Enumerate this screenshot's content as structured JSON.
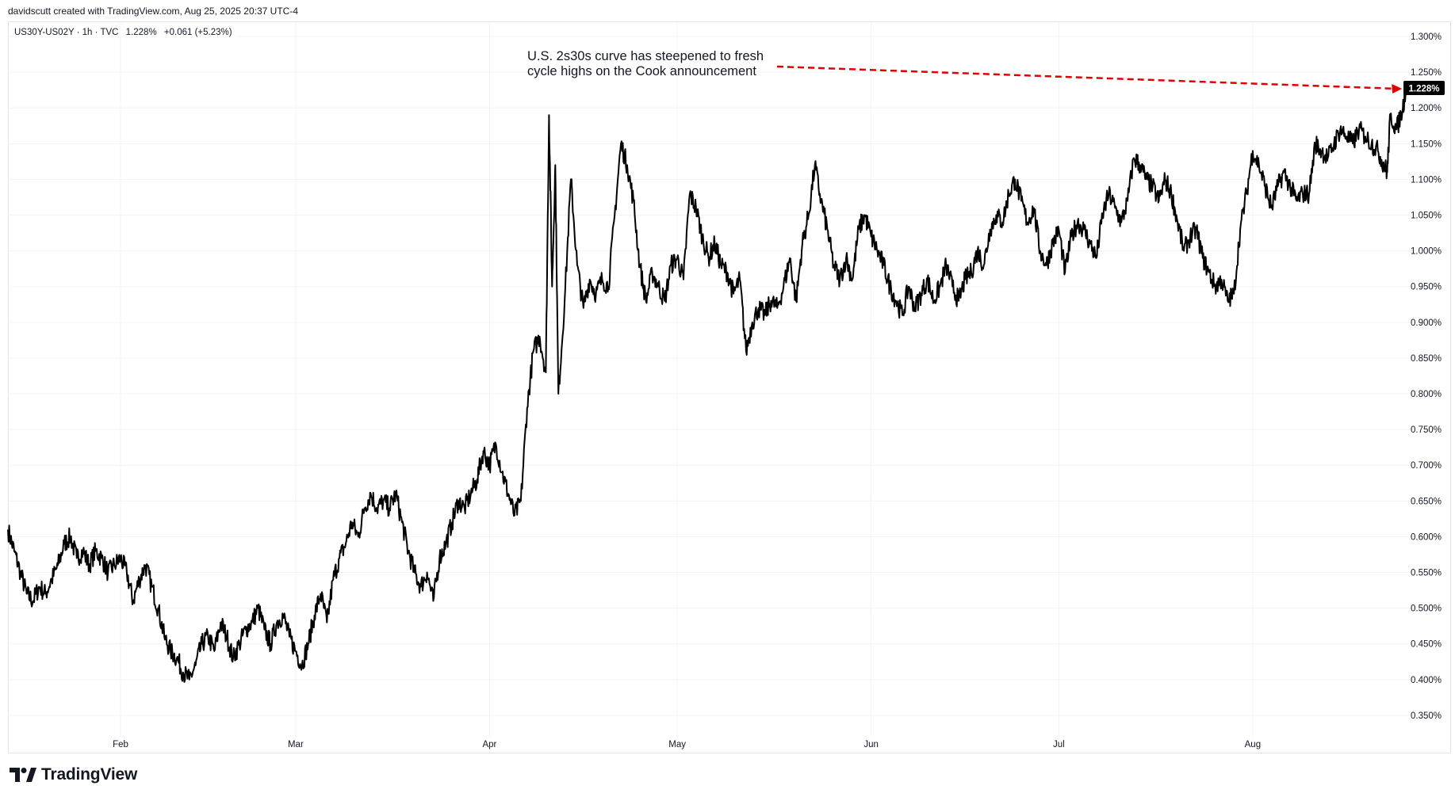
{
  "attribution": "davidscutt created with TradingView.com, Aug 25, 2025 20:37 UTC-4",
  "legend": {
    "symbol": "US30Y-US02Y · 1h · TVC",
    "last": "1.228%",
    "change": "+0.061 (+5.23%)"
  },
  "annotation": {
    "line1": "U.S. 2s30s curve has steepened to fresh",
    "line2": "cycle highs on the Cook announcement"
  },
  "brand": "TradingView",
  "colors": {
    "line": "#000000",
    "arrow": "#e00000",
    "grid": "#f0f3fa",
    "label_bg": "#000000",
    "label_text": "#ffffff"
  },
  "chart_data": {
    "type": "line",
    "title": "",
    "xlabel": "",
    "ylabel": "",
    "ylim": [
      0.32,
      1.32
    ],
    "y_ticks": [
      "1.300%",
      "1.250%",
      "1.200%",
      "1.150%",
      "1.100%",
      "1.050%",
      "1.000%",
      "0.950%",
      "0.900%",
      "0.850%",
      "0.800%",
      "0.750%",
      "0.700%",
      "0.650%",
      "0.600%",
      "0.550%",
      "0.500%",
      "0.450%",
      "0.400%",
      "0.350%"
    ],
    "x_ticks": [
      "Feb",
      "Mar",
      "Apr",
      "May",
      "Jun",
      "Jul",
      "Aug"
    ],
    "last_value_label": "1.228%",
    "series": [
      {
        "values": [
          [
            "2025-01-14",
            0.61
          ],
          [
            "2025-01-15",
            0.58
          ],
          [
            "2025-01-16",
            0.55
          ],
          [
            "2025-01-17",
            0.52
          ],
          [
            "2025-01-18",
            0.51
          ],
          [
            "2025-01-19",
            0.53
          ],
          [
            "2025-01-20",
            0.52
          ],
          [
            "2025-01-21",
            0.54
          ],
          [
            "2025-01-22",
            0.56
          ],
          [
            "2025-01-23",
            0.59
          ],
          [
            "2025-01-24",
            0.6
          ],
          [
            "2025-01-25",
            0.57
          ],
          [
            "2025-01-26",
            0.58
          ],
          [
            "2025-01-27",
            0.56
          ],
          [
            "2025-01-28",
            0.58
          ],
          [
            "2025-01-29",
            0.57
          ],
          [
            "2025-01-30",
            0.55
          ],
          [
            "2025-01-31",
            0.56
          ],
          [
            "2025-02-01",
            0.57
          ],
          [
            "2025-02-02",
            0.55
          ],
          [
            "2025-02-03",
            0.51
          ],
          [
            "2025-02-04",
            0.54
          ],
          [
            "2025-02-05",
            0.56
          ],
          [
            "2025-02-06",
            0.53
          ],
          [
            "2025-02-07",
            0.5
          ],
          [
            "2025-02-08",
            0.46
          ],
          [
            "2025-02-09",
            0.44
          ],
          [
            "2025-02-10",
            0.43
          ],
          [
            "2025-02-11",
            0.41
          ],
          [
            "2025-02-12",
            0.4
          ],
          [
            "2025-02-13",
            0.42
          ],
          [
            "2025-02-14",
            0.45
          ],
          [
            "2025-02-15",
            0.46
          ],
          [
            "2025-02-16",
            0.44
          ],
          [
            "2025-02-17",
            0.48
          ],
          [
            "2025-02-18",
            0.46
          ],
          [
            "2025-02-19",
            0.43
          ],
          [
            "2025-02-20",
            0.45
          ],
          [
            "2025-02-21",
            0.47
          ],
          [
            "2025-02-22",
            0.48
          ],
          [
            "2025-02-23",
            0.5
          ],
          [
            "2025-02-24",
            0.47
          ],
          [
            "2025-02-25",
            0.45
          ],
          [
            "2025-02-26",
            0.48
          ],
          [
            "2025-02-27",
            0.49
          ],
          [
            "2025-02-28",
            0.46
          ],
          [
            "2025-03-01",
            0.44
          ],
          [
            "2025-03-02",
            0.42
          ],
          [
            "2025-03-03",
            0.45
          ],
          [
            "2025-03-04",
            0.49
          ],
          [
            "2025-03-05",
            0.52
          ],
          [
            "2025-03-06",
            0.48
          ],
          [
            "2025-03-07",
            0.54
          ],
          [
            "2025-03-08",
            0.57
          ],
          [
            "2025-03-09",
            0.59
          ],
          [
            "2025-03-10",
            0.62
          ],
          [
            "2025-03-11",
            0.6
          ],
          [
            "2025-03-12",
            0.64
          ],
          [
            "2025-03-13",
            0.66
          ],
          [
            "2025-03-14",
            0.64
          ],
          [
            "2025-03-15",
            0.65
          ],
          [
            "2025-03-16",
            0.64
          ],
          [
            "2025-03-17",
            0.66
          ],
          [
            "2025-03-18",
            0.62
          ],
          [
            "2025-03-19",
            0.58
          ],
          [
            "2025-03-20",
            0.55
          ],
          [
            "2025-03-21",
            0.53
          ],
          [
            "2025-03-22",
            0.55
          ],
          [
            "2025-03-23",
            0.51
          ],
          [
            "2025-03-24",
            0.57
          ],
          [
            "2025-03-25",
            0.59
          ],
          [
            "2025-03-26",
            0.62
          ],
          [
            "2025-03-27",
            0.65
          ],
          [
            "2025-03-28",
            0.64
          ],
          [
            "2025-03-29",
            0.66
          ],
          [
            "2025-03-30",
            0.68
          ],
          [
            "2025-03-31",
            0.72
          ],
          [
            "2025-04-01",
            0.7
          ],
          [
            "2025-04-02",
            0.73
          ],
          [
            "2025-04-03",
            0.69
          ],
          [
            "2025-04-04",
            0.66
          ],
          [
            "2025-04-05",
            0.63
          ],
          [
            "2025-04-06",
            0.65
          ],
          [
            "2025-04-07",
            0.78
          ],
          [
            "2025-04-08",
            0.86
          ],
          [
            "2025-04-09",
            0.88
          ],
          [
            "2025-04-10",
            0.83
          ],
          [
            "2025-04-10T12",
            1.19
          ],
          [
            "2025-04-11",
            0.95
          ],
          [
            "2025-04-11T12",
            1.12
          ],
          [
            "2025-04-12",
            0.8
          ],
          [
            "2025-04-13",
            0.93
          ],
          [
            "2025-04-14",
            1.1
          ],
          [
            "2025-04-15",
            0.98
          ],
          [
            "2025-04-16",
            0.92
          ],
          [
            "2025-04-17",
            0.96
          ],
          [
            "2025-04-18",
            0.94
          ],
          [
            "2025-04-19",
            0.96
          ],
          [
            "2025-04-20",
            0.95
          ],
          [
            "2025-04-21",
            1.05
          ],
          [
            "2025-04-22",
            1.15
          ],
          [
            "2025-04-23",
            1.12
          ],
          [
            "2025-04-24",
            1.07
          ],
          [
            "2025-04-25",
            0.98
          ],
          [
            "2025-04-26",
            0.93
          ],
          [
            "2025-04-27",
            0.97
          ],
          [
            "2025-04-28",
            0.95
          ],
          [
            "2025-04-29",
            0.93
          ],
          [
            "2025-04-30",
            0.98
          ],
          [
            "2025-05-01",
            0.99
          ],
          [
            "2025-05-02",
            0.96
          ],
          [
            "2025-05-03",
            1.08
          ],
          [
            "2025-05-04",
            1.06
          ],
          [
            "2025-05-05",
            1.02
          ],
          [
            "2025-05-06",
            0.99
          ],
          [
            "2025-05-07",
            1.01
          ],
          [
            "2025-05-08",
            0.98
          ],
          [
            "2025-05-09",
            0.97
          ],
          [
            "2025-05-10",
            0.94
          ],
          [
            "2025-05-11",
            0.96
          ],
          [
            "2025-05-12",
            0.86
          ],
          [
            "2025-05-13",
            0.9
          ],
          [
            "2025-05-14",
            0.92
          ],
          [
            "2025-05-15",
            0.91
          ],
          [
            "2025-05-16",
            0.93
          ],
          [
            "2025-05-17",
            0.92
          ],
          [
            "2025-05-18",
            0.95
          ],
          [
            "2025-05-19",
            0.99
          ],
          [
            "2025-05-20",
            0.93
          ],
          [
            "2025-05-21",
            1.01
          ],
          [
            "2025-05-22",
            1.05
          ],
          [
            "2025-05-23",
            1.12
          ],
          [
            "2025-05-24",
            1.07
          ],
          [
            "2025-05-25",
            1.03
          ],
          [
            "2025-05-26",
            0.98
          ],
          [
            "2025-05-27",
            0.96
          ],
          [
            "2025-05-28",
            0.99
          ],
          [
            "2025-05-29",
            0.96
          ],
          [
            "2025-05-30",
            1.03
          ],
          [
            "2025-05-31",
            1.05
          ],
          [
            "2025-06-01",
            1.02
          ],
          [
            "2025-06-02",
            1.0
          ],
          [
            "2025-06-03",
            0.98
          ],
          [
            "2025-06-04",
            0.95
          ],
          [
            "2025-06-05",
            0.93
          ],
          [
            "2025-06-06",
            0.91
          ],
          [
            "2025-06-07",
            0.95
          ],
          [
            "2025-06-08",
            0.92
          ],
          [
            "2025-06-09",
            0.94
          ],
          [
            "2025-06-10",
            0.96
          ],
          [
            "2025-06-11",
            0.93
          ],
          [
            "2025-06-12",
            0.95
          ],
          [
            "2025-06-13",
            0.98
          ],
          [
            "2025-06-14",
            0.95
          ],
          [
            "2025-06-15",
            0.93
          ],
          [
            "2025-06-16",
            0.96
          ],
          [
            "2025-06-17",
            0.97
          ],
          [
            "2025-06-18",
            1.0
          ],
          [
            "2025-06-19",
            0.98
          ],
          [
            "2025-06-20",
            1.03
          ],
          [
            "2025-06-21",
            1.05
          ],
          [
            "2025-06-22",
            1.04
          ],
          [
            "2025-06-23",
            1.08
          ],
          [
            "2025-06-24",
            1.1
          ],
          [
            "2025-06-25",
            1.07
          ],
          [
            "2025-06-26",
            1.04
          ],
          [
            "2025-06-27",
            1.06
          ],
          [
            "2025-06-28",
            1.0
          ],
          [
            "2025-06-29",
            0.98
          ],
          [
            "2025-06-30",
            1.01
          ],
          [
            "2025-07-01",
            1.03
          ],
          [
            "2025-07-02",
            0.97
          ],
          [
            "2025-07-03",
            1.02
          ],
          [
            "2025-07-04",
            1.04
          ],
          [
            "2025-07-05",
            1.03
          ],
          [
            "2025-07-06",
            1.01
          ],
          [
            "2025-07-07",
            0.99
          ],
          [
            "2025-07-08",
            1.05
          ],
          [
            "2025-07-09",
            1.08
          ],
          [
            "2025-07-10",
            1.06
          ],
          [
            "2025-07-11",
            1.04
          ],
          [
            "2025-07-12",
            1.07
          ],
          [
            "2025-07-13",
            1.13
          ],
          [
            "2025-07-14",
            1.12
          ],
          [
            "2025-07-15",
            1.1
          ],
          [
            "2025-07-16",
            1.09
          ],
          [
            "2025-07-17",
            1.07
          ],
          [
            "2025-07-18",
            1.1
          ],
          [
            "2025-07-19",
            1.08
          ],
          [
            "2025-07-20",
            1.04
          ],
          [
            "2025-07-21",
            1.0
          ],
          [
            "2025-07-22",
            1.02
          ],
          [
            "2025-07-23",
            1.03
          ],
          [
            "2025-07-24",
            0.99
          ],
          [
            "2025-07-25",
            0.97
          ],
          [
            "2025-07-26",
            0.95
          ],
          [
            "2025-07-27",
            0.96
          ],
          [
            "2025-07-28",
            0.93
          ],
          [
            "2025-07-29",
            0.94
          ],
          [
            "2025-07-30",
            1.03
          ],
          [
            "2025-07-31",
            1.08
          ],
          [
            "2025-08-01",
            1.14
          ],
          [
            "2025-08-02",
            1.12
          ],
          [
            "2025-08-03",
            1.09
          ],
          [
            "2025-08-04",
            1.06
          ],
          [
            "2025-08-05",
            1.09
          ],
          [
            "2025-08-06",
            1.11
          ],
          [
            "2025-08-07",
            1.09
          ],
          [
            "2025-08-08",
            1.07
          ],
          [
            "2025-08-09",
            1.08
          ],
          [
            "2025-08-10",
            1.08
          ],
          [
            "2025-08-11",
            1.15
          ],
          [
            "2025-08-12",
            1.14
          ],
          [
            "2025-08-13",
            1.13
          ],
          [
            "2025-08-14",
            1.15
          ],
          [
            "2025-08-15",
            1.17
          ],
          [
            "2025-08-16",
            1.16
          ],
          [
            "2025-08-17",
            1.15
          ],
          [
            "2025-08-18",
            1.17
          ],
          [
            "2025-08-19",
            1.16
          ],
          [
            "2025-08-20",
            1.15
          ],
          [
            "2025-08-21",
            1.14
          ],
          [
            "2025-08-22",
            1.12
          ],
          [
            "2025-08-22T12",
            1.11
          ],
          [
            "2025-08-23",
            1.19
          ],
          [
            "2025-08-24",
            1.17
          ],
          [
            "2025-08-25",
            1.2
          ],
          [
            "2025-08-25T12",
            1.228
          ]
        ]
      }
    ]
  }
}
